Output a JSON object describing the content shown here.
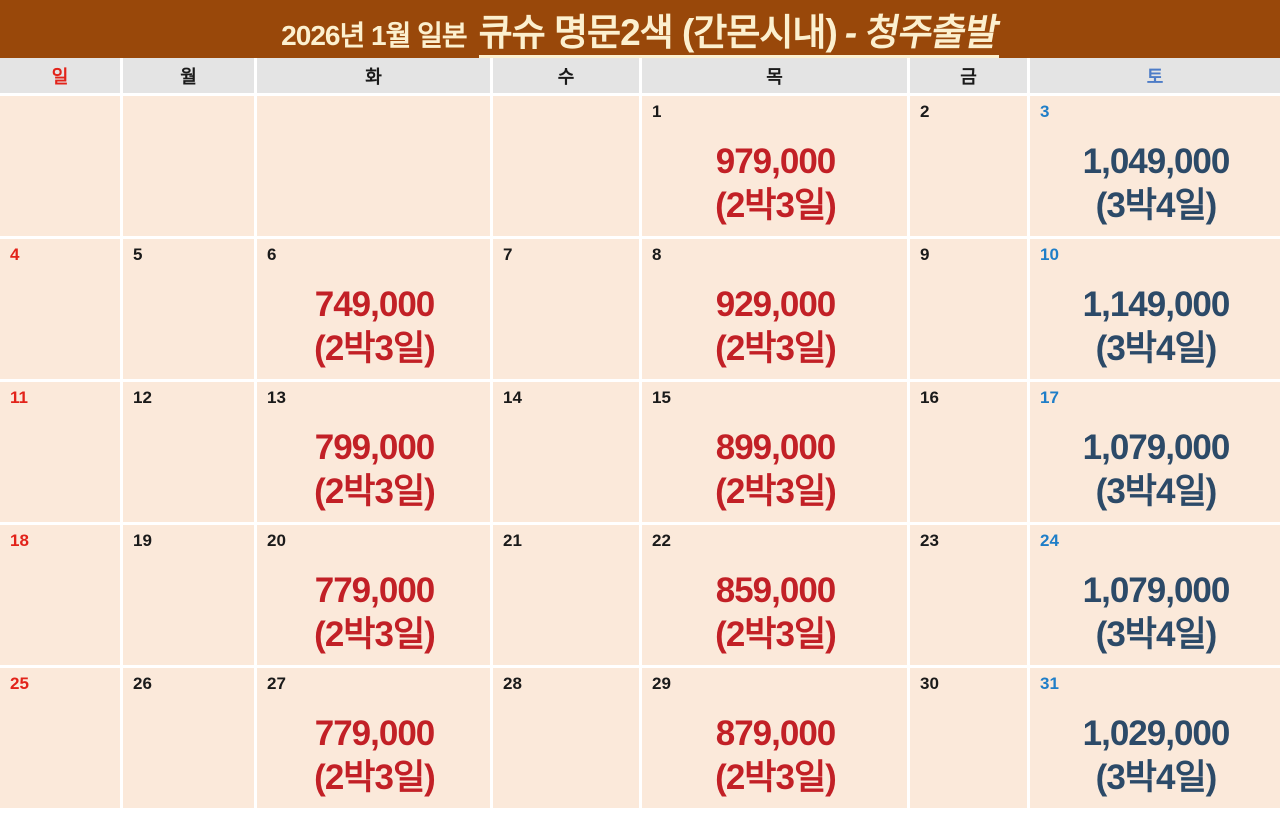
{
  "title": {
    "prefix": "2026년 1월 일본",
    "main_upright": "큐슈 명문2색 (간몬시내)",
    "main_slant": "- 청주출발"
  },
  "colors": {
    "title_bar_bg": "#99480A",
    "title_text": "#FCF0CF",
    "weekday_header_bg": "#E4E4E4",
    "sunday_red": "#E2231A",
    "saturday_header_blue": "#4D7CC7",
    "saturday_day_blue": "#1F7EC8",
    "weekday_black": "#1A1A1A",
    "price_red": "#C22026",
    "price_navy": "#2C4A68",
    "cell_bg": "#FBE9DA",
    "grid_gap": "#FFFFFF"
  },
  "weekday_header": [
    {
      "label": "일",
      "type": "sun"
    },
    {
      "label": "월",
      "type": "weekday"
    },
    {
      "label": "화",
      "type": "weekday"
    },
    {
      "label": "수",
      "type": "weekday"
    },
    {
      "label": "목",
      "type": "weekday"
    },
    {
      "label": "금",
      "type": "weekday"
    },
    {
      "label": "토",
      "type": "sat"
    }
  ],
  "weeks": [
    [
      {
        "day": "",
        "dtype": "empty"
      },
      {
        "day": "",
        "dtype": "empty"
      },
      {
        "day": "",
        "dtype": "empty"
      },
      {
        "day": "",
        "dtype": "empty"
      },
      {
        "day": "1",
        "dtype": "weekday",
        "price": "979,000",
        "duration": "(2박3일)",
        "ptype": "red"
      },
      {
        "day": "2",
        "dtype": "weekday"
      },
      {
        "day": "3",
        "dtype": "sat",
        "price": "1,049,000",
        "duration": "(3박4일)",
        "ptype": "navy"
      }
    ],
    [
      {
        "day": "4",
        "dtype": "sun"
      },
      {
        "day": "5",
        "dtype": "weekday"
      },
      {
        "day": "6",
        "dtype": "weekday",
        "price": "749,000",
        "duration": "(2박3일)",
        "ptype": "red"
      },
      {
        "day": "7",
        "dtype": "weekday"
      },
      {
        "day": "8",
        "dtype": "weekday",
        "price": "929,000",
        "duration": "(2박3일)",
        "ptype": "red"
      },
      {
        "day": "9",
        "dtype": "weekday"
      },
      {
        "day": "10",
        "dtype": "sat",
        "price": "1,149,000",
        "duration": "(3박4일)",
        "ptype": "navy"
      }
    ],
    [
      {
        "day": "11",
        "dtype": "sun"
      },
      {
        "day": "12",
        "dtype": "weekday"
      },
      {
        "day": "13",
        "dtype": "weekday",
        "price": "799,000",
        "duration": "(2박3일)",
        "ptype": "red"
      },
      {
        "day": "14",
        "dtype": "weekday"
      },
      {
        "day": "15",
        "dtype": "weekday",
        "price": "899,000",
        "duration": "(2박3일)",
        "ptype": "red"
      },
      {
        "day": "16",
        "dtype": "weekday"
      },
      {
        "day": "17",
        "dtype": "sat",
        "price": "1,079,000",
        "duration": "(3박4일)",
        "ptype": "navy"
      }
    ],
    [
      {
        "day": "18",
        "dtype": "sun"
      },
      {
        "day": "19",
        "dtype": "weekday"
      },
      {
        "day": "20",
        "dtype": "weekday",
        "price": "779,000",
        "duration": "(2박3일)",
        "ptype": "red"
      },
      {
        "day": "21",
        "dtype": "weekday"
      },
      {
        "day": "22",
        "dtype": "weekday",
        "price": "859,000",
        "duration": "(2박3일)",
        "ptype": "red"
      },
      {
        "day": "23",
        "dtype": "weekday"
      },
      {
        "day": "24",
        "dtype": "sat",
        "price": "1,079,000",
        "duration": "(3박4일)",
        "ptype": "navy"
      }
    ],
    [
      {
        "day": "25",
        "dtype": "sun"
      },
      {
        "day": "26",
        "dtype": "weekday"
      },
      {
        "day": "27",
        "dtype": "weekday",
        "price": "779,000",
        "duration": "(2박3일)",
        "ptype": "red"
      },
      {
        "day": "28",
        "dtype": "weekday"
      },
      {
        "day": "29",
        "dtype": "weekday",
        "price": "879,000",
        "duration": "(2박3일)",
        "ptype": "red"
      },
      {
        "day": "30",
        "dtype": "weekday"
      },
      {
        "day": "31",
        "dtype": "sat",
        "price": "1,029,000",
        "duration": "(3박4일)",
        "ptype": "navy"
      }
    ]
  ]
}
